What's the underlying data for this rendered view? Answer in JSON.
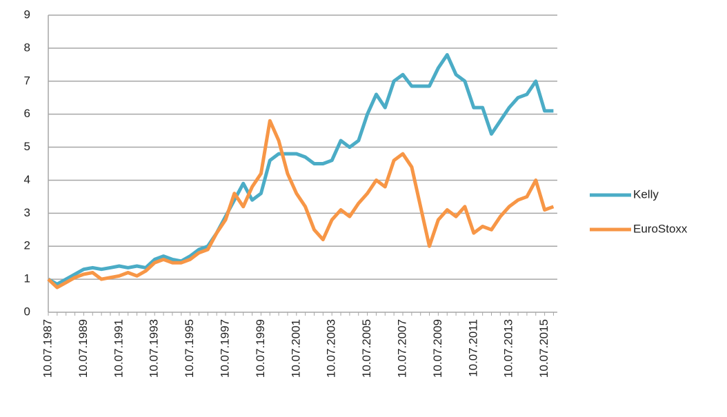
{
  "chart_data": {
    "type": "line",
    "categories": [
      "10.07.1987",
      null,
      null,
      null,
      "10.07.1989",
      null,
      null,
      null,
      "10.07.1991",
      null,
      null,
      null,
      "10.07.1993",
      null,
      null,
      null,
      "10.07.1995",
      null,
      null,
      null,
      "10.07.1997",
      null,
      null,
      null,
      "10.07.1999",
      null,
      null,
      null,
      "10.07.2001",
      null,
      null,
      null,
      "10.07.2003",
      null,
      null,
      null,
      "10.07.2005",
      null,
      null,
      null,
      "10.07.2007",
      null,
      null,
      null,
      "10.07.2009",
      null,
      null,
      null,
      "10.07.2011",
      null,
      null,
      null,
      "10.07.2013",
      null,
      null,
      null,
      "10.07.2015",
      null
    ],
    "series": [
      {
        "name": "Kelly",
        "color": "#4bacc6",
        "values": [
          1.0,
          0.85,
          1.0,
          1.15,
          1.3,
          1.35,
          1.3,
          1.35,
          1.4,
          1.35,
          1.4,
          1.35,
          1.6,
          1.7,
          1.6,
          1.55,
          1.7,
          1.9,
          2.0,
          2.4,
          2.9,
          3.4,
          3.9,
          3.4,
          3.6,
          4.6,
          4.8,
          4.8,
          4.8,
          4.7,
          4.5,
          4.5,
          4.6,
          5.2,
          5.0,
          5.2,
          6.0,
          6.6,
          6.2,
          7.0,
          7.2,
          6.85,
          6.85,
          6.85,
          7.4,
          7.8,
          7.2,
          7.0,
          6.2,
          6.2,
          5.4,
          5.8,
          6.2,
          6.5,
          6.6,
          7.0,
          6.1,
          6.1
        ]
      },
      {
        "name": "EuroStoxx",
        "color": "#f79646",
        "values": [
          1.0,
          0.75,
          0.9,
          1.05,
          1.15,
          1.2,
          1.0,
          1.05,
          1.1,
          1.2,
          1.1,
          1.25,
          1.5,
          1.6,
          1.5,
          1.5,
          1.6,
          1.8,
          1.9,
          2.4,
          2.8,
          3.6,
          3.2,
          3.8,
          4.2,
          5.8,
          5.2,
          4.2,
          3.6,
          3.2,
          2.5,
          2.2,
          2.8,
          3.1,
          2.9,
          3.3,
          3.6,
          4.0,
          3.8,
          4.6,
          4.8,
          4.4,
          3.2,
          2.0,
          2.8,
          3.1,
          2.9,
          3.2,
          2.4,
          2.6,
          2.5,
          2.9,
          3.2,
          3.4,
          3.5,
          4.0,
          3.1,
          3.2
        ]
      }
    ],
    "ylim": [
      0,
      9
    ],
    "yticks": [
      0,
      1,
      2,
      3,
      4,
      5,
      6,
      7,
      8,
      9
    ],
    "grid": true,
    "legend": "right"
  }
}
